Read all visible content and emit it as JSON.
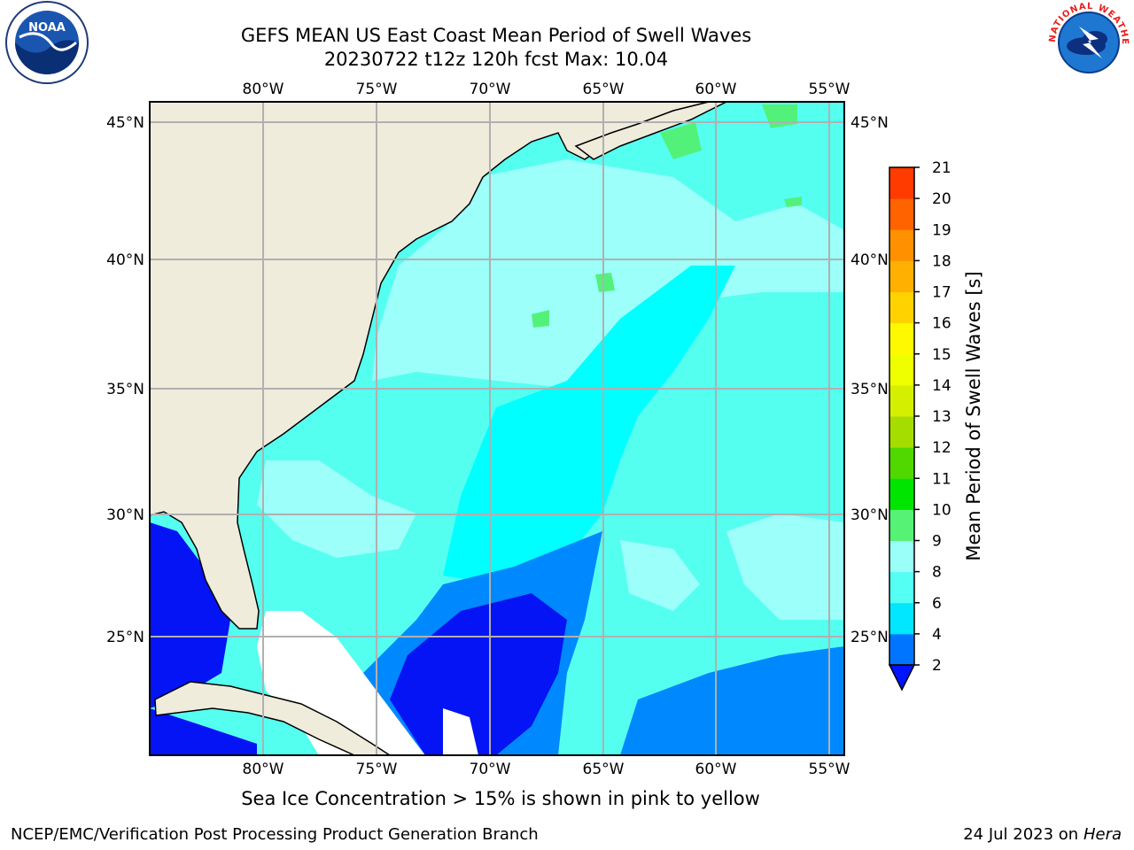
{
  "title": {
    "line1": "GEFS MEAN US East Coast Mean Period of Swell Waves",
    "line2": "20230722 t12z 120h fcst   Max: 10.04"
  },
  "map": {
    "lon_labels": [
      "80°W",
      "75°W",
      "70°W",
      "65°W",
      "60°W",
      "55°W"
    ],
    "lat_labels": [
      "45°N",
      "40°N",
      "35°N",
      "30°N",
      "25°N"
    ],
    "colors": {
      "land": "#efecdc",
      "ocean_light": "#9cfff9",
      "ocean_mid": "#55fff0",
      "ocean_cyan": "#00ffff",
      "ocean_blue": "#0089ff",
      "ocean_dark": "#0414f4",
      "patch_green": "#52f27a",
      "missing": "#ffffff"
    }
  },
  "colorbar": {
    "label": "Mean Period of Swell Waves [s]",
    "ticks": [
      "2",
      "4",
      "6",
      "8",
      "9",
      "10",
      "11",
      "12",
      "13",
      "14",
      "15",
      "16",
      "17",
      "18",
      "19",
      "20",
      "21"
    ],
    "colors": [
      "#0075ff",
      "#00e7ff",
      "#54fff4",
      "#9bfff9",
      "#55f276",
      "#00e500",
      "#51d800",
      "#a6dd00",
      "#d4f000",
      "#f0ff00",
      "#fff900",
      "#ffd200",
      "#ffb000",
      "#ff9000",
      "#ff6300",
      "#ff3b00",
      "#ff0000"
    ],
    "under_color": "#0015ff"
  },
  "note": "Sea Ice Concentration > 15% is shown in pink to yellow",
  "footer": {
    "left": "NCEP/EMC/Verification Post Processing Product Generation Branch",
    "right_prefix": "24 Jul 2023 on ",
    "right_machine": "Hera"
  },
  "logos": {
    "noaa_text": "NOAA",
    "nws_text": "NATIONAL WEATHER SERVICE"
  }
}
